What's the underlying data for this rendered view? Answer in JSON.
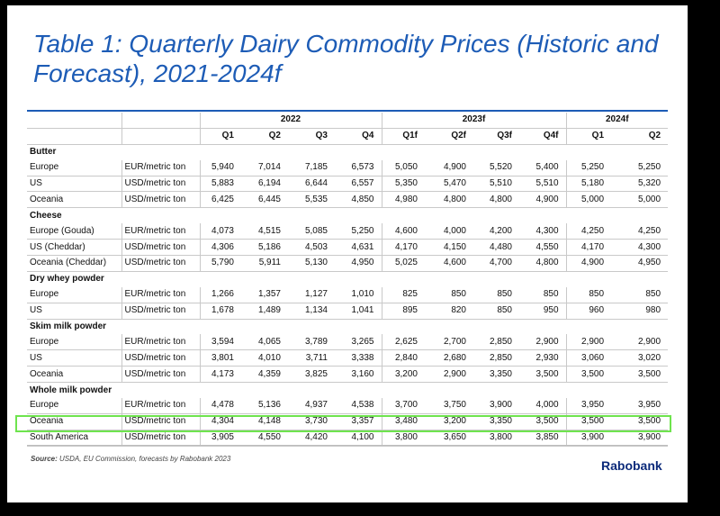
{
  "title": {
    "line1": "Table 1: Quarterly Dairy Commodity Prices (Historic and",
    "line2": "Forecast), 2021-2024f"
  },
  "header": {
    "groups": [
      "2022",
      "2023f",
      "2024f"
    ],
    "quarters": [
      "Q1",
      "Q2",
      "Q3",
      "Q4",
      "Q1f",
      "Q2f",
      "Q3f",
      "Q4f",
      "Q1",
      "Q2"
    ]
  },
  "sections": [
    {
      "name": "Butter",
      "rows": [
        {
          "label": "Europe",
          "unit": "EUR/metric ton",
          "values": [
            "5,940",
            "7,014",
            "7,185",
            "6,573",
            "5,050",
            "4,900",
            "5,520",
            "5,400",
            "5,250",
            "5,250"
          ]
        },
        {
          "label": "US",
          "unit": "USD/metric ton",
          "values": [
            "5,883",
            "6,194",
            "6,644",
            "6,557",
            "5,350",
            "5,470",
            "5,510",
            "5,510",
            "5,180",
            "5,320"
          ]
        },
        {
          "label": "Oceania",
          "unit": "USD/metric ton",
          "values": [
            "6,425",
            "6,445",
            "5,535",
            "4,850",
            "4,980",
            "4,800",
            "4,800",
            "4,900",
            "5,000",
            "5,000"
          ]
        }
      ]
    },
    {
      "name": "Cheese",
      "rows": [
        {
          "label": "Europe (Gouda)",
          "unit": "EUR/metric ton",
          "values": [
            "4,073",
            "4,515",
            "5,085",
            "5,250",
            "4,600",
            "4,000",
            "4,200",
            "4,300",
            "4,250",
            "4,250"
          ]
        },
        {
          "label": "US (Cheddar)",
          "unit": "USD/metric ton",
          "values": [
            "4,306",
            "5,186",
            "4,503",
            "4,631",
            "4,170",
            "4,150",
            "4,480",
            "4,550",
            "4,170",
            "4,300"
          ]
        },
        {
          "label": "Oceania (Cheddar)",
          "unit": "USD/metric ton",
          "values": [
            "5,790",
            "5,911",
            "5,130",
            "4,950",
            "5,025",
            "4,600",
            "4,700",
            "4,800",
            "4,900",
            "4,950"
          ]
        }
      ]
    },
    {
      "name": "Dry whey powder",
      "rows": [
        {
          "label": "Europe",
          "unit": "EUR/metric ton",
          "values": [
            "1,266",
            "1,357",
            "1,127",
            "1,010",
            "825",
            "850",
            "850",
            "850",
            "850",
            "850"
          ]
        },
        {
          "label": "US",
          "unit": "USD/metric ton",
          "values": [
            "1,678",
            "1,489",
            "1,134",
            "1,041",
            "895",
            "820",
            "850",
            "950",
            "960",
            "980"
          ]
        }
      ]
    },
    {
      "name": "Skim milk powder",
      "rows": [
        {
          "label": "Europe",
          "unit": "EUR/metric ton",
          "values": [
            "3,594",
            "4,065",
            "3,789",
            "3,265",
            "2,625",
            "2,700",
            "2,850",
            "2,900",
            "2,900",
            "2,900"
          ]
        },
        {
          "label": "US",
          "unit": "USD/metric ton",
          "values": [
            "3,801",
            "4,010",
            "3,711",
            "3,338",
            "2,840",
            "2,680",
            "2,850",
            "2,930",
            "3,060",
            "3,020"
          ]
        },
        {
          "label": "Oceania",
          "unit": "USD/metric ton",
          "values": [
            "4,173",
            "4,359",
            "3,825",
            "3,160",
            "3,200",
            "2,900",
            "3,350",
            "3,500",
            "3,500",
            "3,500"
          ]
        }
      ]
    },
    {
      "name": "Whole milk powder",
      "rows": [
        {
          "label": "Europe",
          "unit": "EUR/metric ton",
          "values": [
            "4,478",
            "5,136",
            "4,937",
            "4,538",
            "3,700",
            "3,750",
            "3,900",
            "4,000",
            "3,950",
            "3,950"
          ]
        },
        {
          "label": "Oceania",
          "unit": "USD/metric ton",
          "values": [
            "4,304",
            "4,148",
            "3,730",
            "3,357",
            "3,480",
            "3,200",
            "3,350",
            "3,500",
            "3,500",
            "3,500"
          ]
        },
        {
          "label": "South America",
          "unit": "USD/metric ton",
          "values": [
            "3,905",
            "4,550",
            "4,420",
            "4,100",
            "3,800",
            "3,650",
            "3,800",
            "3,850",
            "3,900",
            "3,900"
          ]
        }
      ]
    }
  ],
  "source": {
    "label": "Source:",
    "text": " USDA, EU Commission, forecasts by Rabobank 2023"
  },
  "brand": "Rabobank",
  "colors": {
    "title": "#1d5cb6",
    "highlight": "#6ee44e",
    "brand": "#0b2a7a"
  }
}
